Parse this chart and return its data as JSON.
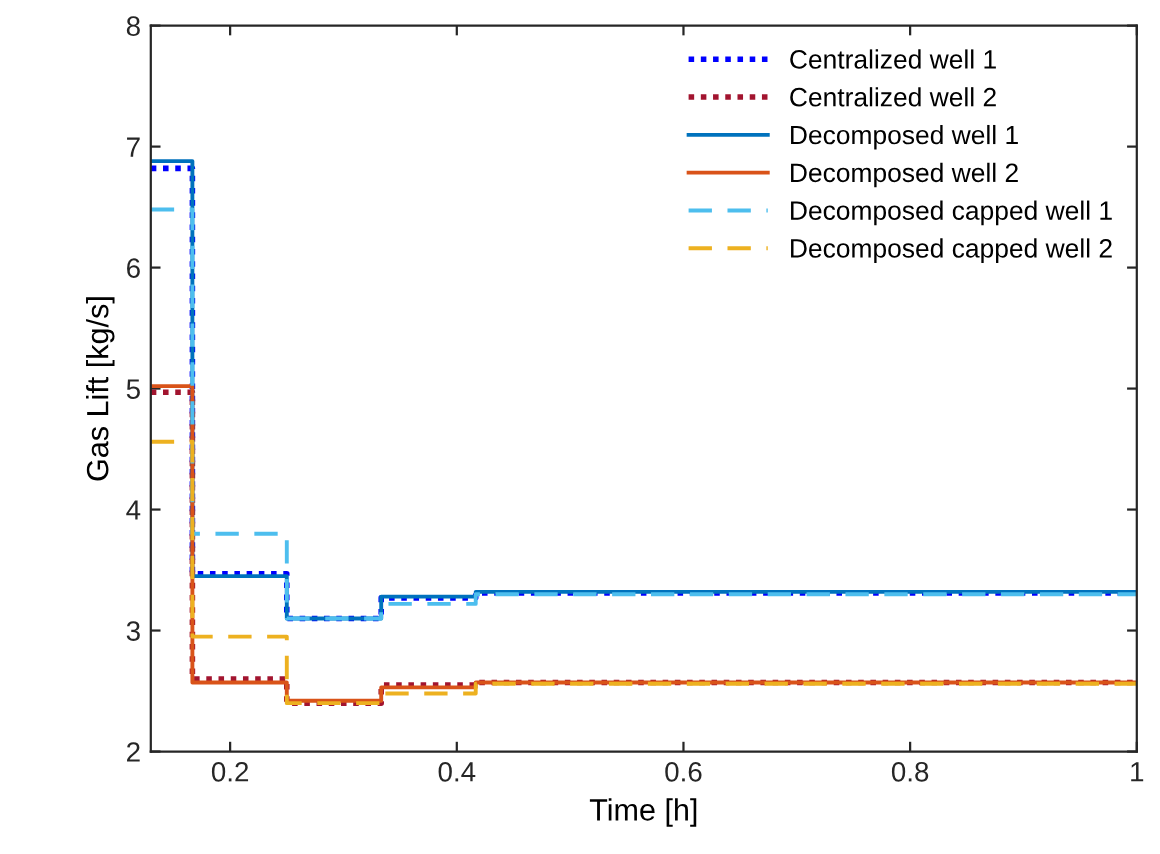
{
  "chart_data": {
    "type": "step",
    "xlabel": "Time [h]",
    "ylabel": "Gas Lift [kg/s]",
    "xlim": [
      0.13,
      1
    ],
    "ylim": [
      2,
      8
    ],
    "xticks": [
      0.2,
      0.4,
      0.6,
      0.8,
      1
    ],
    "yticks": [
      2,
      3,
      4,
      5,
      6,
      7,
      8
    ],
    "grid": false,
    "legend": "top right",
    "x": [
      0.13,
      0.1667,
      0.25,
      0.3333,
      0.4167,
      1
    ],
    "series": [
      {
        "name": "Centralized well 1",
        "color": "#0000ff",
        "line_style": "dotted",
        "values": [
          6.82,
          3.47,
          3.1,
          3.27,
          3.31,
          3.31
        ]
      },
      {
        "name": "Centralized well 2",
        "color": "#a2142f",
        "line_style": "dotted",
        "values": [
          4.97,
          2.6,
          2.4,
          2.55,
          2.57,
          2.57
        ]
      },
      {
        "name": "Decomposed well 1",
        "color": "#0072bd",
        "line_style": "solid",
        "values": [
          6.88,
          3.45,
          3.1,
          3.28,
          3.32,
          3.32
        ]
      },
      {
        "name": "Decomposed well 2",
        "color": "#d95319",
        "line_style": "solid",
        "values": [
          5.02,
          2.57,
          2.42,
          2.53,
          2.57,
          2.57
        ]
      },
      {
        "name": "Decomposed capped well 1",
        "color": "#4dbeee",
        "line_style": "dashed",
        "values": [
          6.48,
          3.8,
          3.1,
          3.22,
          3.3,
          3.3
        ]
      },
      {
        "name": "Decomposed capped well 2",
        "color": "#edb120",
        "line_style": "dashed",
        "values": [
          4.56,
          2.95,
          2.4,
          2.48,
          2.56,
          2.56
        ]
      }
    ]
  }
}
